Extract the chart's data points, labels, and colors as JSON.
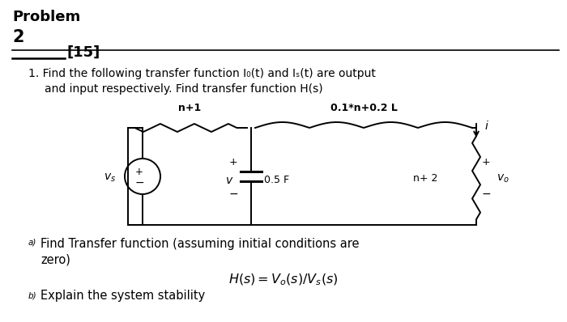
{
  "bg_color": "#ffffff",
  "title_bold": "Problem",
  "title_num": "2",
  "marks": "[15]",
  "line1": "1. Find the following transfer function I₀(t) and Iₛ(t) are output",
  "line2": "and input respectively. Find transfer function H(s)",
  "part_a_superscript": "a)",
  "part_a_text": "Find Transfer function (assuming initial conditions are",
  "part_a_text2": "zero)",
  "part_b_superscript": "b)",
  "part_b_text": "Explain the system stability",
  "circuit_resistor1_label": "n+1",
  "circuit_inductor_label": "0.1*n+0.2 L",
  "circuit_cap_label": "0.5 F",
  "circuit_res2_label": "n+ 2",
  "formula_text": "H(s) = V_o(s)/V_s(s)"
}
